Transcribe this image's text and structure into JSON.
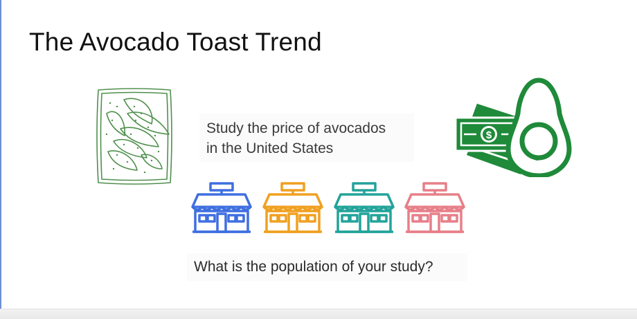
{
  "slide": {
    "title": "The Avocado Toast Trend",
    "study_lines": [
      "Study the price of avocados",
      "in the United States"
    ],
    "question": "What is the population of your study?"
  },
  "icons": {
    "toast": "avocado-toast-sketch",
    "money": "dollar-bill-stack",
    "avocado": "avocado-half",
    "store": "storefront"
  },
  "colors": {
    "toast_green": "#4f8f4c",
    "money_green": "#1f8a3a",
    "store_colors": [
      "#3f6fe0",
      "#f0a020",
      "#22a39a",
      "#e77f88"
    ]
  }
}
